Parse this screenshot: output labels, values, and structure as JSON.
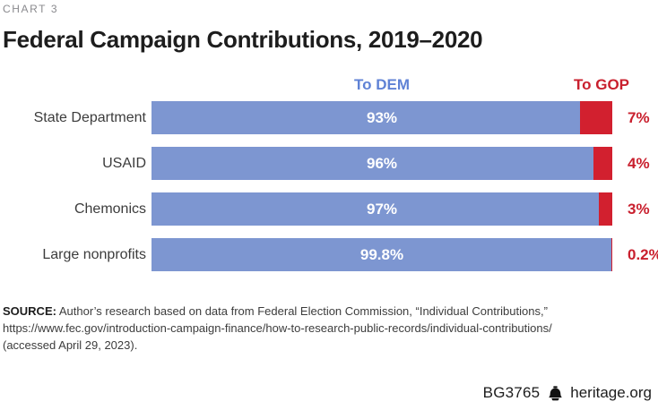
{
  "eyebrow": "CHART 3",
  "title": "Federal Campaign Contributions, 2019–2020",
  "chart_data": {
    "type": "bar",
    "orientation": "horizontal",
    "stacked": true,
    "title": "Federal Campaign Contributions, 2019–2020",
    "categories": [
      "State Department",
      "USAID",
      "Chemonics",
      "Large nonprofits"
    ],
    "series": [
      {
        "name": "To DEM",
        "color": "#7d96d1",
        "values": [
          93,
          96,
          97,
          99.8
        ],
        "labels": [
          "93%",
          "96%",
          "97%",
          "99.8%"
        ]
      },
      {
        "name": "To GOP",
        "color": "#d2202f",
        "values": [
          7,
          4,
          3,
          0.2
        ],
        "labels": [
          "7%",
          "4%",
          "3%",
          "0.2%"
        ]
      }
    ],
    "xlim": [
      0,
      100
    ],
    "xlabel": "",
    "ylabel": "",
    "grid": false,
    "legend_position": "top",
    "value_labels_dem_position": "inside-center-white",
    "value_labels_gop_position": "outside-right-red"
  },
  "legend": {
    "dem_label": "To DEM",
    "gop_label": "To GOP"
  },
  "source": {
    "label": "SOURCE:",
    "text": "Author’s research based on data from Federal Election Commission, “Individual Contributions,”",
    "url": "https://www.fec.gov/introduction-campaign-finance/how-to-research-public-records/individual-contributions/",
    "accessed": "(accessed April 29, 2023)."
  },
  "footer": {
    "doc_id": "BG3765",
    "site": "heritage.org",
    "icon": "liberty-bell-icon"
  },
  "colors": {
    "dem_bar": "#7d96d1",
    "gop_bar": "#d2202f",
    "dem_header_text": "#5f82d5",
    "gop_header_text": "#c9202e",
    "value_inside_text": "#ffffff",
    "title_text": "#1d1d1d",
    "eyebrow_text": "#8a8a8e",
    "category_text": "#3c3c3c",
    "source_text": "#3c3c3c"
  }
}
